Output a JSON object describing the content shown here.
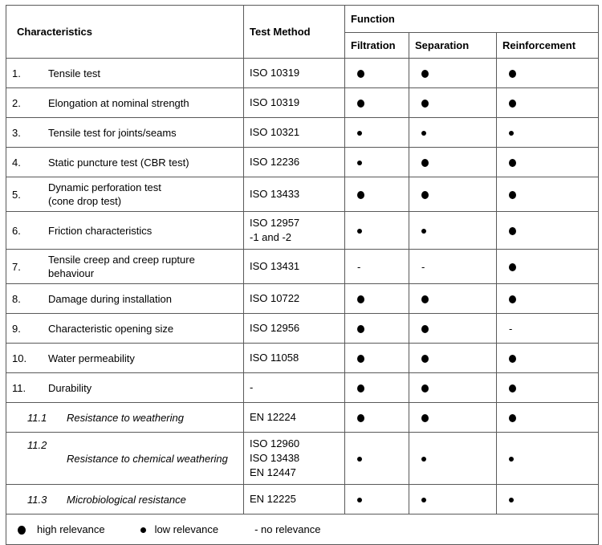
{
  "table": {
    "headers": {
      "characteristics": "Characteristics",
      "test_method": "Test Method",
      "function": "Function",
      "filtration": "Filtration",
      "separation": "Separation",
      "reinforcement": "Reinforcement"
    },
    "relevance_symbols": {
      "high": "large-black-dot",
      "low": "small-black-dot",
      "none": "-"
    },
    "rows": [
      {
        "num": "1.",
        "name": [
          "Tensile test"
        ],
        "method": [
          "ISO 10319"
        ],
        "filtration": "high",
        "separation": "high",
        "reinforcement": "high",
        "italic": false
      },
      {
        "num": "2.",
        "name": [
          "Elongation at nominal strength"
        ],
        "method": [
          "ISO 10319"
        ],
        "filtration": "high",
        "separation": "high",
        "reinforcement": "high",
        "italic": false
      },
      {
        "num": "3.",
        "name": [
          "Tensile test for joints/seams"
        ],
        "method": [
          "ISO 10321"
        ],
        "filtration": "low",
        "separation": "low",
        "reinforcement": "low",
        "italic": false
      },
      {
        "num": "4.",
        "name": [
          "Static puncture test (CBR test)"
        ],
        "method": [
          "ISO 12236"
        ],
        "filtration": "low",
        "separation": "high",
        "reinforcement": "high",
        "italic": false
      },
      {
        "num": "5.",
        "name": [
          "Dynamic perforation test",
          "(cone drop test)"
        ],
        "method": [
          "ISO 13433"
        ],
        "filtration": "high",
        "separation": "high",
        "reinforcement": "high",
        "italic": false
      },
      {
        "num": "6.",
        "name": [
          "Friction characteristics"
        ],
        "method": [
          "ISO 12957",
          "-1 and -2"
        ],
        "filtration": "low",
        "separation": "low",
        "reinforcement": "high",
        "italic": false
      },
      {
        "num": "7.",
        "name": [
          "Tensile creep and creep rupture",
          "behaviour"
        ],
        "method": [
          "ISO 13431"
        ],
        "filtration": "none",
        "separation": "none",
        "reinforcement": "high",
        "italic": false
      },
      {
        "num": "8.",
        "name": [
          "Damage during installation"
        ],
        "method": [
          "ISO 10722"
        ],
        "filtration": "high",
        "separation": "high",
        "reinforcement": "high",
        "italic": false
      },
      {
        "num": "9.",
        "name": [
          "Characteristic opening size"
        ],
        "method": [
          "ISO 12956"
        ],
        "filtration": "high",
        "separation": "high",
        "reinforcement": "none",
        "italic": false
      },
      {
        "num": "10.",
        "name": [
          "Water permeability"
        ],
        "method": [
          "ISO 11058"
        ],
        "filtration": "high",
        "separation": "high",
        "reinforcement": "high",
        "italic": false
      },
      {
        "num": "11.",
        "name": [
          "Durability"
        ],
        "method": [
          "-"
        ],
        "filtration": "high",
        "separation": "high",
        "reinforcement": "high",
        "italic": false
      },
      {
        "num": "11.1",
        "name": [
          "Resistance to weathering"
        ],
        "method": [
          "EN 12224"
        ],
        "filtration": "high",
        "separation": "high",
        "reinforcement": "high",
        "italic": true
      },
      {
        "num": "11.2",
        "name": [
          "Resistance to chemical weathering"
        ],
        "method": [
          "ISO 12960",
          "ISO 13438",
          "EN 12447"
        ],
        "filtration": "low",
        "separation": "low",
        "reinforcement": "low",
        "italic": true
      },
      {
        "num": "11.3",
        "name": [
          "Microbiological resistance"
        ],
        "method": [
          "EN 12225"
        ],
        "filtration": "low",
        "separation": "low",
        "reinforcement": "low",
        "italic": true
      }
    ],
    "legend": {
      "high": "high relevance",
      "low": "low relevance",
      "none": "- no relevance"
    }
  }
}
